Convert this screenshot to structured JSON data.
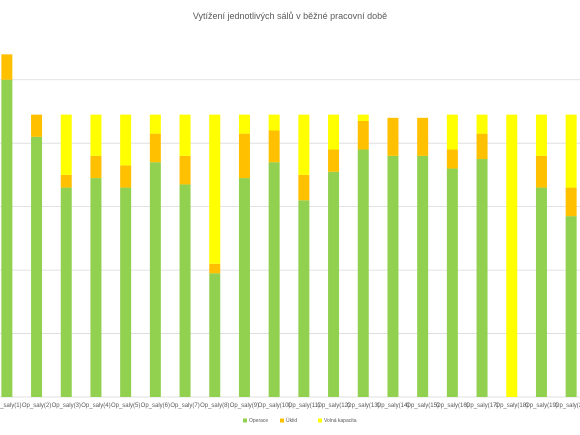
{
  "chart_data": {
    "type": "bar",
    "stacked": true,
    "title": "Vytížení jednotlivých  sálů  v běžné pracovní době",
    "categories": [
      "Op_saly(1)",
      "Op_saly(2)",
      "Op_saly(3)",
      "Op_saly(4)",
      "Op_saly(5)",
      "Op_saly(6)",
      "Op_saly(7)",
      "Op_saly(8)",
      "Op_saly(9)",
      "Op_saly(10)",
      "Op_saly(11)",
      "Op_saly(12)",
      "Op_saly(13)",
      "Op_saly(14)",
      "Op_saly(15)",
      "Op_saly(16)",
      "Op_saly(17)",
      "Op_saly(18)",
      "Op_saly(19)",
      "Op_saly(20)"
    ],
    "ylim": [
      0,
      1.1
    ],
    "grid": true,
    "legend_position": "bottom-right",
    "series": [
      {
        "name": "Operace",
        "color": "#92d050",
        "values": [
          1.0,
          0.82,
          0.66,
          0.69,
          0.66,
          0.74,
          0.67,
          0.39,
          0.69,
          0.74,
          0.62,
          0.71,
          0.78,
          0.76,
          0.76,
          0.72,
          0.75,
          0.0,
          0.66,
          0.57
        ]
      },
      {
        "name": "Úklid",
        "color": "#ffc000",
        "values": [
          0.08,
          0.07,
          0.04,
          0.07,
          0.07,
          0.09,
          0.09,
          0.03,
          0.14,
          0.1,
          0.08,
          0.07,
          0.09,
          0.12,
          0.12,
          0.06,
          0.08,
          0.0,
          0.1,
          0.09
        ]
      },
      {
        "name": "Volná kapacita",
        "color": "#ffff00",
        "values": [
          0.0,
          0.0,
          0.19,
          0.13,
          0.16,
          0.06,
          0.13,
          0.47,
          0.06,
          0.05,
          0.19,
          0.11,
          0.02,
          0.0,
          0.0,
          0.11,
          0.06,
          0.89,
          0.13,
          0.23
        ]
      }
    ]
  }
}
